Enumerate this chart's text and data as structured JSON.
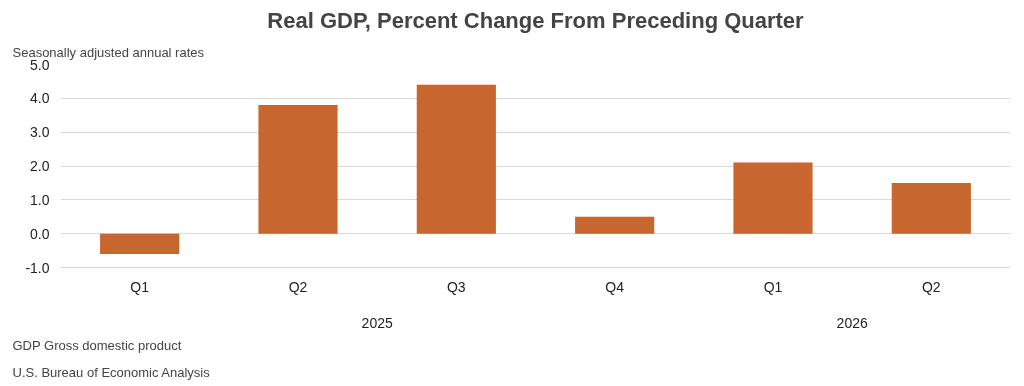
{
  "chart_data": {
    "type": "bar",
    "title": "Real GDP, Percent Change From Preceding Quarter",
    "ylabel": "Seasonally adjusted annual rates",
    "categories": [
      "Q1",
      "Q2",
      "Q3",
      "Q4",
      "Q1",
      "Q2"
    ],
    "values": [
      -0.6,
      3.8,
      4.4,
      0.5,
      2.1,
      1.5
    ],
    "color": "#c8662f",
    "ylim": [
      -1,
      5
    ],
    "yticks": [
      {
        "value": -1,
        "label": "-1.0"
      },
      {
        "value": 0,
        "label": "0.0"
      },
      {
        "value": 1,
        "label": "1.0"
      },
      {
        "value": 2,
        "label": "2.0"
      },
      {
        "value": 3,
        "label": "3.0"
      },
      {
        "value": 4,
        "label": "4.0"
      },
      {
        "value": 5,
        "label": "5.0"
      }
    ],
    "grid": "y",
    "annotations": [
      "2025",
      "2026",
      "GDP Gross domestic product",
      "U.S. Bureau of Economic Analysis"
    ]
  }
}
